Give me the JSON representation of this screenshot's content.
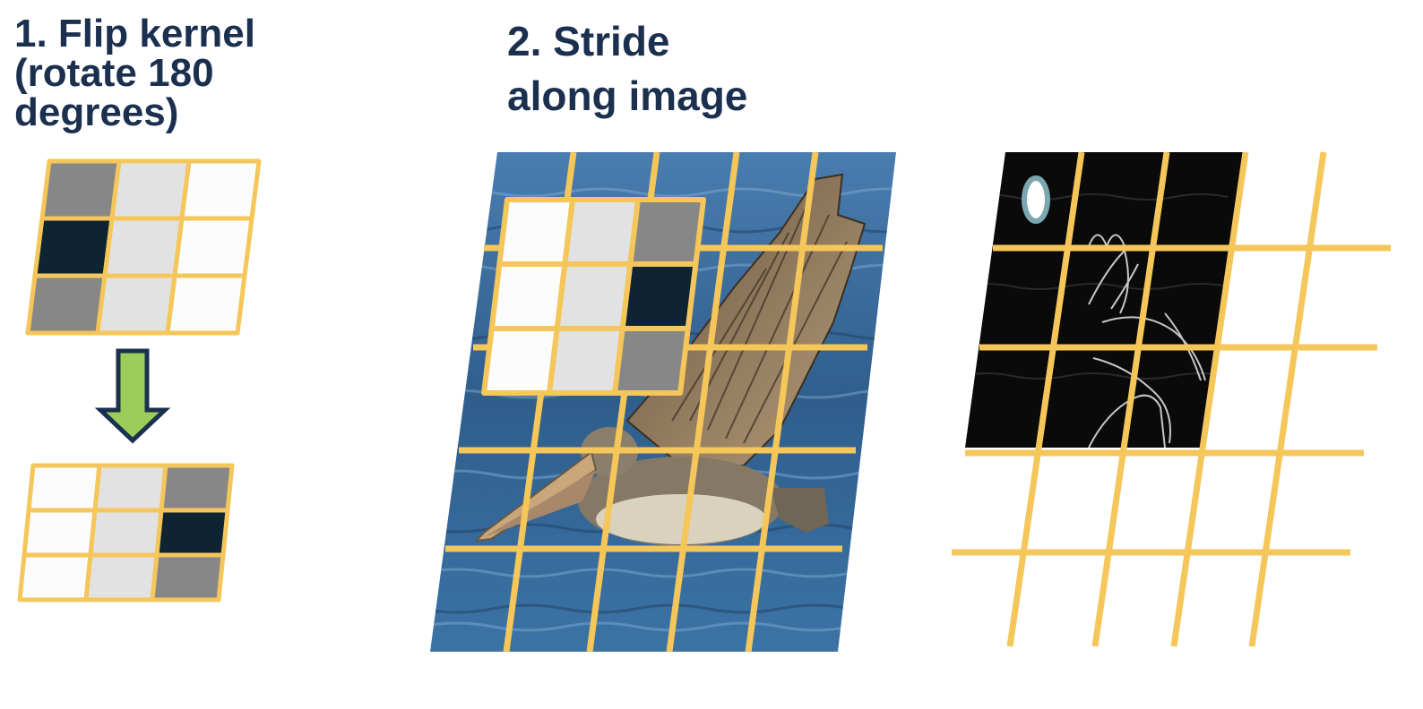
{
  "step1": {
    "lines": [
      "1. Flip kernel",
      "(rotate 180",
      "degrees)"
    ]
  },
  "step2": {
    "lines": [
      "2. Stride",
      "along image"
    ]
  },
  "kernel_original": {
    "cells": [
      [
        "#878787",
        "#e2e2e2",
        "#fcfcfc"
      ],
      [
        "#0f2433",
        "#e2e2e2",
        "#fcfcfc"
      ],
      [
        "#878787",
        "#e2e2e2",
        "#fcfcfc"
      ]
    ]
  },
  "kernel_flipped": {
    "cells": [
      [
        "#fcfcfc",
        "#e2e2e2",
        "#878787"
      ],
      [
        "#fcfcfc",
        "#e2e2e2",
        "#0f2433"
      ],
      [
        "#fcfcfc",
        "#e2e2e2",
        "#878787"
      ]
    ]
  },
  "colors": {
    "title": "#1b2f4e",
    "grid_line": "#f5c659",
    "arrow_fill": "#9ccc5a",
    "arrow_stroke": "#1b2f4e",
    "water": "#2f5e8c",
    "feature_map": "#0a0a0a",
    "marker": "#7aa7b0"
  },
  "icons": {
    "arrow": "down-arrow-icon",
    "photo": "pelican-photo",
    "marker": "ellipse-marker-icon"
  }
}
